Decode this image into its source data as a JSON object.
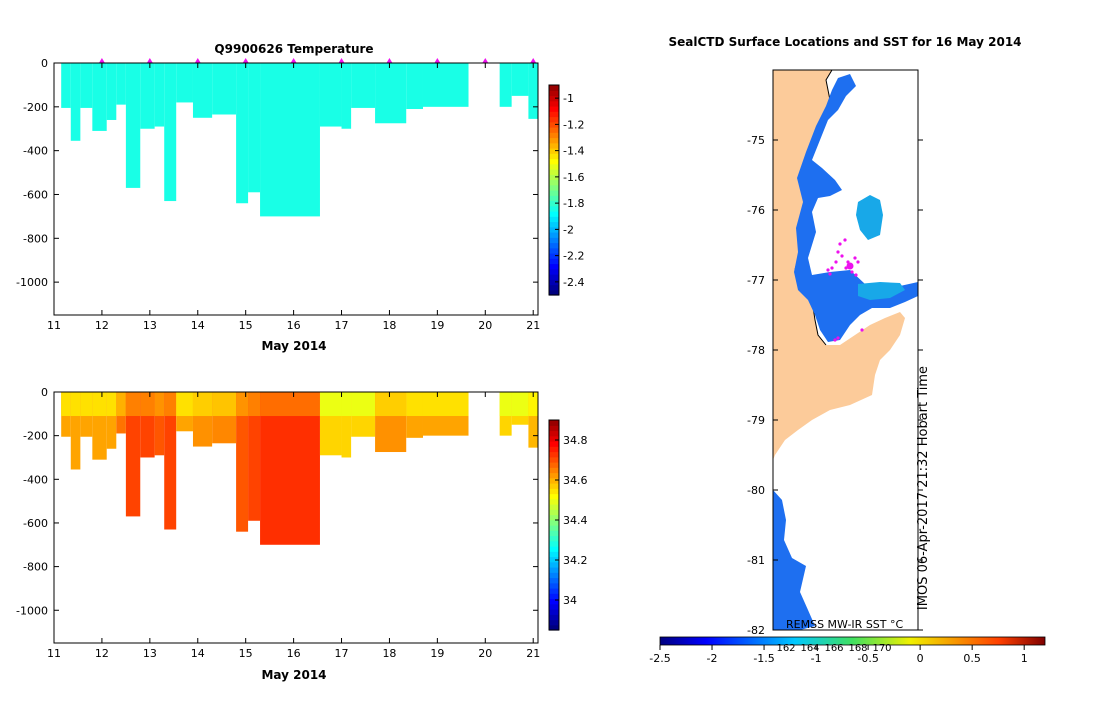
{
  "colors": {
    "temperature_fill": "#1fc280",
    "salinity_light": "#f8c010",
    "salinity_mid": "#f5a000",
    "salinity_dark": "#dd6a10",
    "land": "#fccb9a",
    "sea_ice_blue": "#1e6ff0",
    "open_water_cyan": "#18a8e8",
    "marker": "#ee10ee"
  },
  "chart_data": [
    {
      "id": "temperature-section",
      "type": "heatmap",
      "title": "Q9900626  Temperature",
      "xlabel": "May 2014",
      "ylabel": "",
      "xlim": [
        11,
        21.1
      ],
      "ylim": [
        -1150,
        0
      ],
      "x_ticks": [
        "11",
        "12",
        "13",
        "14",
        "15",
        "16",
        "17",
        "18",
        "19",
        "20",
        "21"
      ],
      "y_ticks": [
        "0",
        "-200",
        "-400",
        "-600",
        "-800",
        "-1000"
      ],
      "colorbar": {
        "range": [
          -2.5,
          -0.9
        ],
        "ticks": [
          "-1",
          "-1.2",
          "-1.4",
          "-1.6",
          "-1.8",
          "-2",
          "-2.2",
          "-2.4"
        ]
      },
      "profile_days": [
        12.0,
        13.0,
        14.0,
        15.0,
        16.0,
        17.0,
        18.0,
        19.0,
        20.0,
        21.0
      ],
      "profiles": [
        {
          "x0": 11.15,
          "x1": 11.35,
          "depth": 205,
          "value": -1.86
        },
        {
          "x0": 11.35,
          "x1": 11.55,
          "depth": 355,
          "value": -1.86
        },
        {
          "x0": 11.55,
          "x1": 11.8,
          "depth": 205,
          "value": -1.86
        },
        {
          "x0": 11.8,
          "x1": 12.1,
          "depth": 310,
          "value": -1.86
        },
        {
          "x0": 12.1,
          "x1": 12.3,
          "depth": 260,
          "value": -1.86
        },
        {
          "x0": 12.3,
          "x1": 12.5,
          "depth": 190,
          "value": -1.86
        },
        {
          "x0": 12.5,
          "x1": 12.8,
          "depth": 570,
          "value": -1.86
        },
        {
          "x0": 12.8,
          "x1": 13.1,
          "depth": 300,
          "value": -1.86
        },
        {
          "x0": 13.1,
          "x1": 13.3,
          "depth": 290,
          "value": -1.86
        },
        {
          "x0": 13.3,
          "x1": 13.55,
          "depth": 630,
          "value": -1.86
        },
        {
          "x0": 13.55,
          "x1": 13.9,
          "depth": 180,
          "value": -1.86
        },
        {
          "x0": 13.9,
          "x1": 14.3,
          "depth": 250,
          "value": -1.86
        },
        {
          "x0": 14.3,
          "x1": 14.8,
          "depth": 235,
          "value": -1.86
        },
        {
          "x0": 14.8,
          "x1": 15.05,
          "depth": 640,
          "value": -1.86
        },
        {
          "x0": 15.05,
          "x1": 15.3,
          "depth": 590,
          "value": -1.86
        },
        {
          "x0": 15.3,
          "x1": 16.55,
          "depth": 700,
          "value": -1.86
        },
        {
          "x0": 16.55,
          "x1": 17.0,
          "depth": 290,
          "value": -1.86
        },
        {
          "x0": 17.0,
          "x1": 17.2,
          "depth": 300,
          "value": -1.86
        },
        {
          "x0": 17.2,
          "x1": 17.7,
          "depth": 205,
          "value": -1.86
        },
        {
          "x0": 17.7,
          "x1": 18.35,
          "depth": 275,
          "value": -1.86
        },
        {
          "x0": 18.35,
          "x1": 18.7,
          "depth": 210,
          "value": -1.86
        },
        {
          "x0": 18.7,
          "x1": 19.65,
          "depth": 200,
          "value": -1.86
        },
        {
          "x0": 20.3,
          "x1": 20.55,
          "depth": 200,
          "value": -1.86
        },
        {
          "x0": 20.55,
          "x1": 20.9,
          "depth": 150,
          "value": -1.86
        },
        {
          "x0": 20.9,
          "x1": 21.1,
          "depth": 255,
          "value": -1.86
        }
      ]
    },
    {
      "id": "salinity-section",
      "type": "heatmap",
      "title": "",
      "xlabel": "May 2014",
      "ylabel": "",
      "xlim": [
        11,
        21.1
      ],
      "ylim": [
        -1150,
        0
      ],
      "x_ticks": [
        "11",
        "12",
        "13",
        "14",
        "15",
        "16",
        "17",
        "18",
        "19",
        "20",
        "21"
      ],
      "y_ticks": [
        "0",
        "-200",
        "-400",
        "-600",
        "-800",
        "-1000"
      ],
      "colorbar": {
        "range": [
          33.85,
          34.9
        ],
        "ticks": [
          "34.8",
          "34.6",
          "34.4",
          "34.2",
          "34"
        ]
      },
      "profiles": [
        {
          "x0": 11.15,
          "x1": 11.35,
          "depth": 205,
          "value": 34.6
        },
        {
          "x0": 11.35,
          "x1": 11.55,
          "depth": 355,
          "value": 34.6
        },
        {
          "x0": 11.55,
          "x1": 11.8,
          "depth": 205,
          "value": 34.6
        },
        {
          "x0": 11.8,
          "x1": 12.1,
          "depth": 310,
          "value": 34.6
        },
        {
          "x0": 12.1,
          "x1": 12.3,
          "depth": 260,
          "value": 34.6
        },
        {
          "x0": 12.3,
          "x1": 12.5,
          "depth": 190,
          "value": 34.65
        },
        {
          "x0": 12.5,
          "x1": 12.8,
          "depth": 570,
          "value": 34.7
        },
        {
          "x0": 12.8,
          "x1": 13.1,
          "depth": 300,
          "value": 34.7
        },
        {
          "x0": 13.1,
          "x1": 13.3,
          "depth": 290,
          "value": 34.68
        },
        {
          "x0": 13.3,
          "x1": 13.55,
          "depth": 630,
          "value": 34.7
        },
        {
          "x0": 13.55,
          "x1": 13.9,
          "depth": 180,
          "value": 34.6
        },
        {
          "x0": 13.9,
          "x1": 14.3,
          "depth": 250,
          "value": 34.62
        },
        {
          "x0": 14.3,
          "x1": 14.8,
          "depth": 235,
          "value": 34.63
        },
        {
          "x0": 14.8,
          "x1": 15.05,
          "depth": 640,
          "value": 34.68
        },
        {
          "x0": 15.05,
          "x1": 15.3,
          "depth": 590,
          "value": 34.7
        },
        {
          "x0": 15.3,
          "x1": 16.55,
          "depth": 700,
          "value": 34.72
        },
        {
          "x0": 16.55,
          "x1": 17.0,
          "depth": 290,
          "value": 34.55
        },
        {
          "x0": 17.0,
          "x1": 17.2,
          "depth": 300,
          "value": 34.55
        },
        {
          "x0": 17.2,
          "x1": 17.7,
          "depth": 205,
          "value": 34.55
        },
        {
          "x0": 17.7,
          "x1": 18.35,
          "depth": 275,
          "value": 34.62
        },
        {
          "x0": 18.35,
          "x1": 18.7,
          "depth": 210,
          "value": 34.6
        },
        {
          "x0": 18.7,
          "x1": 19.65,
          "depth": 200,
          "value": 34.6
        },
        {
          "x0": 20.3,
          "x1": 20.55,
          "depth": 200,
          "value": 34.55
        },
        {
          "x0": 20.55,
          "x1": 20.9,
          "depth": 150,
          "value": 34.55
        },
        {
          "x0": 20.9,
          "x1": 21.1,
          "depth": 255,
          "value": 34.58
        }
      ]
    },
    {
      "id": "sst-map",
      "type": "heatmap",
      "title": "SealCTD Surface Locations and SST for 16 May 2014",
      "xlabel": "",
      "ylabel": "",
      "lat_ticks": [
        "-75",
        "-76",
        "-77",
        "-78",
        "-79",
        "-80",
        "-81",
        "-82"
      ],
      "lat_range": [
        -82,
        -74.0
      ],
      "side_label": "IMOS 06-Apr-2017 21:32 Hobart Time",
      "colorbar": {
        "title": "REMSS MW-IR SST °C",
        "range": [
          -2.5,
          1.2
        ],
        "ticks": [
          "-2.5",
          "-2",
          "-1.5",
          "-1",
          "-0.5",
          "0",
          "0.5",
          "1"
        ],
        "inner_labels": [
          "162",
          "164",
          "166",
          "168",
          "170"
        ]
      }
    }
  ]
}
